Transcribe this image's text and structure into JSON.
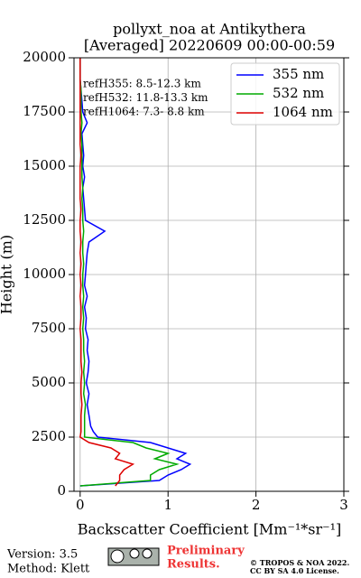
{
  "chart_data": {
    "type": "line",
    "title": "pollyxt_noa at Antikythera",
    "subtitle": "[Averaged] 20220609 00:00-00:59",
    "xlabel": "Backscatter Coefficient [Mm⁻¹*sr⁻¹]",
    "ylabel": "Height (m)",
    "xlim": [
      -0.07,
      3
    ],
    "xticks": [
      0,
      1,
      2,
      3
    ],
    "ylim": [
      0,
      20000
    ],
    "yticks": [
      0,
      2500,
      5000,
      7500,
      10000,
      12500,
      15000,
      17500,
      20000
    ],
    "grid": true,
    "legend": "upper right",
    "y": [
      250,
      500,
      750,
      1000,
      1250,
      1500,
      1750,
      2000,
      2250,
      2500,
      2750,
      3000,
      3500,
      4000,
      4500,
      5000,
      5500,
      6000,
      6500,
      7000,
      7500,
      8000,
      8500,
      9000,
      9500,
      10000,
      10500,
      11000,
      11500,
      12000,
      12500,
      13000,
      13500,
      14000,
      14500,
      15000,
      15500,
      16000,
      16500,
      17000,
      17500,
      18000,
      18500,
      19000,
      19500,
      20000
    ],
    "series": [
      {
        "name": "355 nm",
        "color": "#0000ff",
        "values": [
          0.0,
          0.9,
          1.0,
          1.15,
          1.25,
          1.1,
          1.2,
          1.0,
          0.8,
          0.2,
          0.15,
          0.12,
          0.1,
          0.08,
          0.1,
          0.07,
          0.09,
          0.1,
          0.08,
          0.09,
          0.06,
          0.07,
          0.05,
          0.08,
          0.05,
          0.06,
          0.07,
          0.08,
          0.1,
          0.28,
          0.06,
          0.05,
          0.04,
          0.03,
          0.05,
          0.03,
          0.04,
          0.03,
          0.02,
          0.08,
          0.03,
          0.02,
          0.01,
          0.0,
          0.0,
          0.0
        ]
      },
      {
        "name": "532 nm",
        "color": "#00aa00",
        "values": [
          0.0,
          0.8,
          0.8,
          0.9,
          1.1,
          0.85,
          1.0,
          0.75,
          0.6,
          0.05,
          0.05,
          0.05,
          0.05,
          0.06,
          0.04,
          0.05,
          0.04,
          0.05,
          0.04,
          0.04,
          0.03,
          0.04,
          0.03,
          0.04,
          0.03,
          0.03,
          0.04,
          0.03,
          0.03,
          0.04,
          0.03,
          0.03,
          0.02,
          0.03,
          0.02,
          0.02,
          0.02,
          0.02,
          0.01,
          0.02,
          0.01,
          0.01,
          0.01,
          0.0,
          0.0,
          0.0
        ]
      },
      {
        "name": "1064 nm",
        "color": "#dd0000",
        "values": [
          0.4,
          0.45,
          0.45,
          0.5,
          0.6,
          0.4,
          0.45,
          0.35,
          0.1,
          0.0,
          0.01,
          0.01,
          0.01,
          0.02,
          0.01,
          0.01,
          0.02,
          0.01,
          0.01,
          0.01,
          0.0,
          0.01,
          0.01,
          0.0,
          0.01,
          0.0,
          0.01,
          0.0,
          0.01,
          0.0,
          0.0,
          0.01,
          0.0,
          0.0,
          0.0,
          0.0,
          0.01,
          0.0,
          0.0,
          0.0,
          0.0,
          0.0,
          0.0,
          0.0,
          0.0,
          0.0
        ]
      }
    ],
    "annotations": [
      "refH355:  8.5-12.3 km",
      "refH532: 11.8-13.3 km",
      "refH1064:  7.3- 8.8 km"
    ],
    "footer": {
      "version": "Version: 3.5",
      "method": "Method: Klett",
      "notice": "Preliminary",
      "notice2": "Results.",
      "copyright": "© TROPOS & NOA 2022.",
      "license": "CC BY SA 4.0 License."
    }
  }
}
